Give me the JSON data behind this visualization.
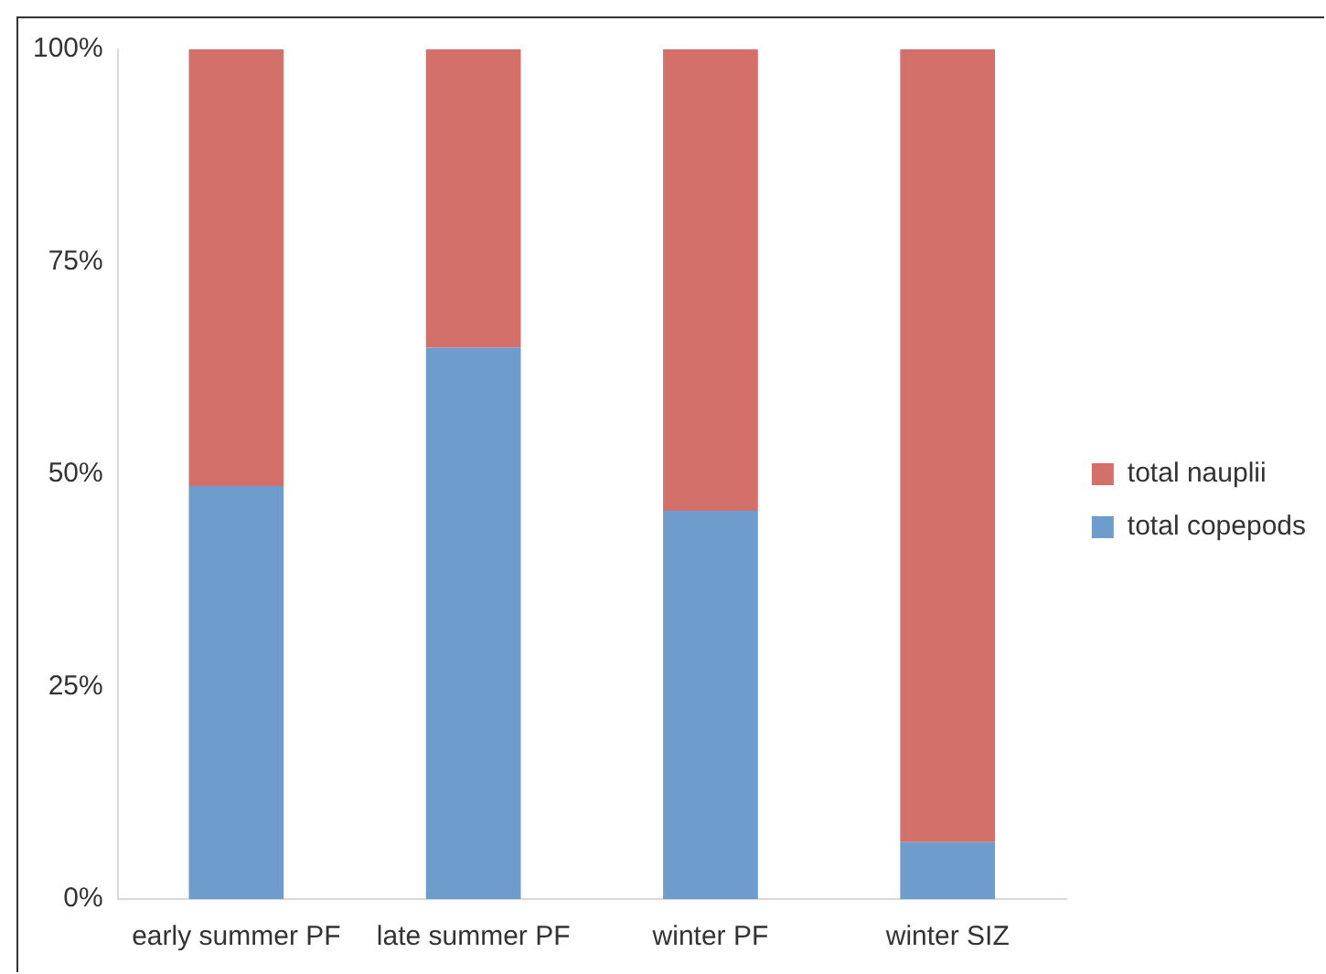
{
  "chart_data": {
    "type": "bar",
    "stacked": true,
    "categories": [
      "early summer PF",
      "late summer PF",
      "winter PF",
      "winter SIZ"
    ],
    "series": [
      {
        "name": "total copepods",
        "color": "#6d9ccd",
        "values": [
          48.6,
          64.9,
          45.7,
          6.7
        ]
      },
      {
        "name": "total nauplii",
        "color": "#d4706a",
        "values": [
          51.4,
          35.1,
          54.3,
          93.3
        ]
      }
    ],
    "ylim": [
      0,
      100
    ],
    "yticks": [
      {
        "value": 0,
        "label": "0%"
      },
      {
        "value": 25,
        "label": "25%"
      },
      {
        "value": 50,
        "label": "50%"
      },
      {
        "value": 75,
        "label": "75%"
      },
      {
        "value": 100,
        "label": "100%"
      }
    ],
    "grid": false,
    "legend": "right"
  }
}
